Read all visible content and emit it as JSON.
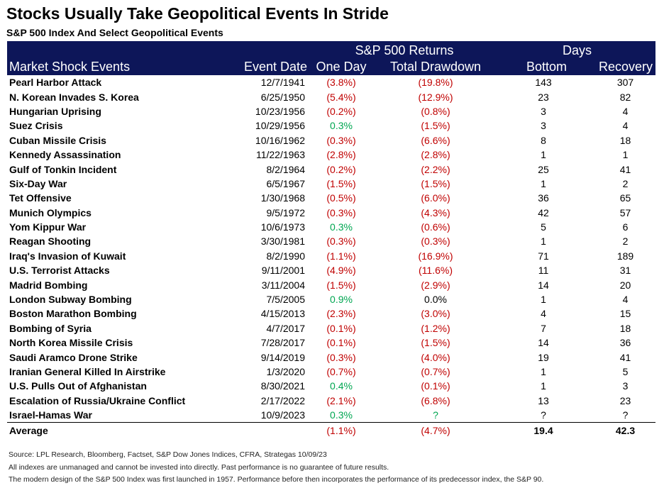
{
  "title": "Stocks Usually Take Geopolitical Events In Stride",
  "subtitle": "S&P 500 Index And Select Geopolitical Events",
  "header": {
    "group_returns": "S&P 500 Returns",
    "group_days": "Days",
    "col_event": "Market Shock Events",
    "col_date": "Event Date",
    "col_one_day": "One Day",
    "col_drawdown": "Total Drawdown",
    "col_bottom": "Bottom",
    "col_recovery": "Recovery"
  },
  "colors": {
    "header_bg": "#0d1659",
    "negative": "#c00000",
    "positive": "#00a651"
  },
  "chart_data": {
    "type": "table",
    "columns": [
      "Market Shock Events",
      "Event Date",
      "One Day",
      "Total Drawdown",
      "Bottom",
      "Recovery"
    ],
    "rows": [
      {
        "event": "Pearl Harbor Attack",
        "date": "12/7/1941",
        "one_day": "(3.8%)",
        "drawdown": "(19.8%)",
        "bottom": "143",
        "recovery": "307"
      },
      {
        "event": "N. Korean Invades S. Korea",
        "date": "6/25/1950",
        "one_day": "(5.4%)",
        "drawdown": "(12.9%)",
        "bottom": "23",
        "recovery": "82"
      },
      {
        "event": "Hungarian Uprising",
        "date": "10/23/1956",
        "one_day": "(0.2%)",
        "drawdown": "(0.8%)",
        "bottom": "3",
        "recovery": "4"
      },
      {
        "event": "Suez Crisis",
        "date": "10/29/1956",
        "one_day": "0.3%",
        "drawdown": "(1.5%)",
        "bottom": "3",
        "recovery": "4"
      },
      {
        "event": "Cuban Missile Crisis",
        "date": "10/16/1962",
        "one_day": "(0.3%)",
        "drawdown": "(6.6%)",
        "bottom": "8",
        "recovery": "18"
      },
      {
        "event": "Kennedy Assassination",
        "date": "11/22/1963",
        "one_day": "(2.8%)",
        "drawdown": "(2.8%)",
        "bottom": "1",
        "recovery": "1"
      },
      {
        "event": "Gulf of Tonkin Incident",
        "date": "8/2/1964",
        "one_day": "(0.2%)",
        "drawdown": "(2.2%)",
        "bottom": "25",
        "recovery": "41"
      },
      {
        "event": "Six-Day War",
        "date": "6/5/1967",
        "one_day": "(1.5%)",
        "drawdown": "(1.5%)",
        "bottom": "1",
        "recovery": "2"
      },
      {
        "event": "Tet Offensive",
        "date": "1/30/1968",
        "one_day": "(0.5%)",
        "drawdown": "(6.0%)",
        "bottom": "36",
        "recovery": "65"
      },
      {
        "event": "Munich Olympics",
        "date": "9/5/1972",
        "one_day": "(0.3%)",
        "drawdown": "(4.3%)",
        "bottom": "42",
        "recovery": "57"
      },
      {
        "event": "Yom Kippur War",
        "date": "10/6/1973",
        "one_day": "0.3%",
        "drawdown": "(0.6%)",
        "bottom": "5",
        "recovery": "6"
      },
      {
        "event": "Reagan Shooting",
        "date": "3/30/1981",
        "one_day": "(0.3%)",
        "drawdown": "(0.3%)",
        "bottom": "1",
        "recovery": "2"
      },
      {
        "event": "Iraq's Invasion of Kuwait",
        "date": "8/2/1990",
        "one_day": "(1.1%)",
        "drawdown": "(16.9%)",
        "bottom": "71",
        "recovery": "189"
      },
      {
        "event": "U.S. Terrorist Attacks",
        "date": "9/11/2001",
        "one_day": "(4.9%)",
        "drawdown": "(11.6%)",
        "bottom": "11",
        "recovery": "31"
      },
      {
        "event": "Madrid Bombing",
        "date": "3/11/2004",
        "one_day": "(1.5%)",
        "drawdown": "(2.9%)",
        "bottom": "14",
        "recovery": "20"
      },
      {
        "event": "London Subway Bombing",
        "date": "7/5/2005",
        "one_day": "0.9%",
        "drawdown": "0.0%",
        "bottom": "1",
        "recovery": "4"
      },
      {
        "event": "Boston Marathon Bombing",
        "date": "4/15/2013",
        "one_day": "(2.3%)",
        "drawdown": "(3.0%)",
        "bottom": "4",
        "recovery": "15"
      },
      {
        "event": "Bombing of Syria",
        "date": "4/7/2017",
        "one_day": "(0.1%)",
        "drawdown": "(1.2%)",
        "bottom": "7",
        "recovery": "18"
      },
      {
        "event": "North Korea Missile Crisis",
        "date": "7/28/2017",
        "one_day": "(0.1%)",
        "drawdown": "(1.5%)",
        "bottom": "14",
        "recovery": "36"
      },
      {
        "event": "Saudi Aramco Drone Strike",
        "date": "9/14/2019",
        "one_day": "(0.3%)",
        "drawdown": "(4.0%)",
        "bottom": "19",
        "recovery": "41"
      },
      {
        "event": "Iranian General Killed In Airstrike",
        "date": "1/3/2020",
        "one_day": "(0.7%)",
        "drawdown": "(0.7%)",
        "bottom": "1",
        "recovery": "5"
      },
      {
        "event": "U.S. Pulls Out of Afghanistan",
        "date": "8/30/2021",
        "one_day": "0.4%",
        "drawdown": "(0.1%)",
        "bottom": "1",
        "recovery": "3"
      },
      {
        "event": "Escalation of Russia/Ukraine Conflict",
        "date": "2/17/2022",
        "one_day": "(2.1%)",
        "drawdown": "(6.8%)",
        "bottom": "13",
        "recovery": "23"
      },
      {
        "event": "Israel-Hamas War",
        "date": "10/9/2023",
        "one_day": "0.3%",
        "drawdown": "?",
        "bottom": "?",
        "recovery": "?"
      }
    ],
    "average": {
      "label": "Average",
      "one_day": "(1.1%)",
      "drawdown": "(4.7%)",
      "bottom": "19.4",
      "recovery": "42.3"
    }
  },
  "footnotes": [
    "Source: LPL Research, Bloomberg, Factset, S&P Dow Jones Indices, CFRA, Strategas 10/09/23",
    "All indexes are unmanaged and cannot be invested into directly.  Past performance is no guarantee of future results.",
    "The modern design of the S&P 500 Index was first launched in 1957. Performance before then incorporates the performance of its predecessor index, the S&P 90."
  ]
}
